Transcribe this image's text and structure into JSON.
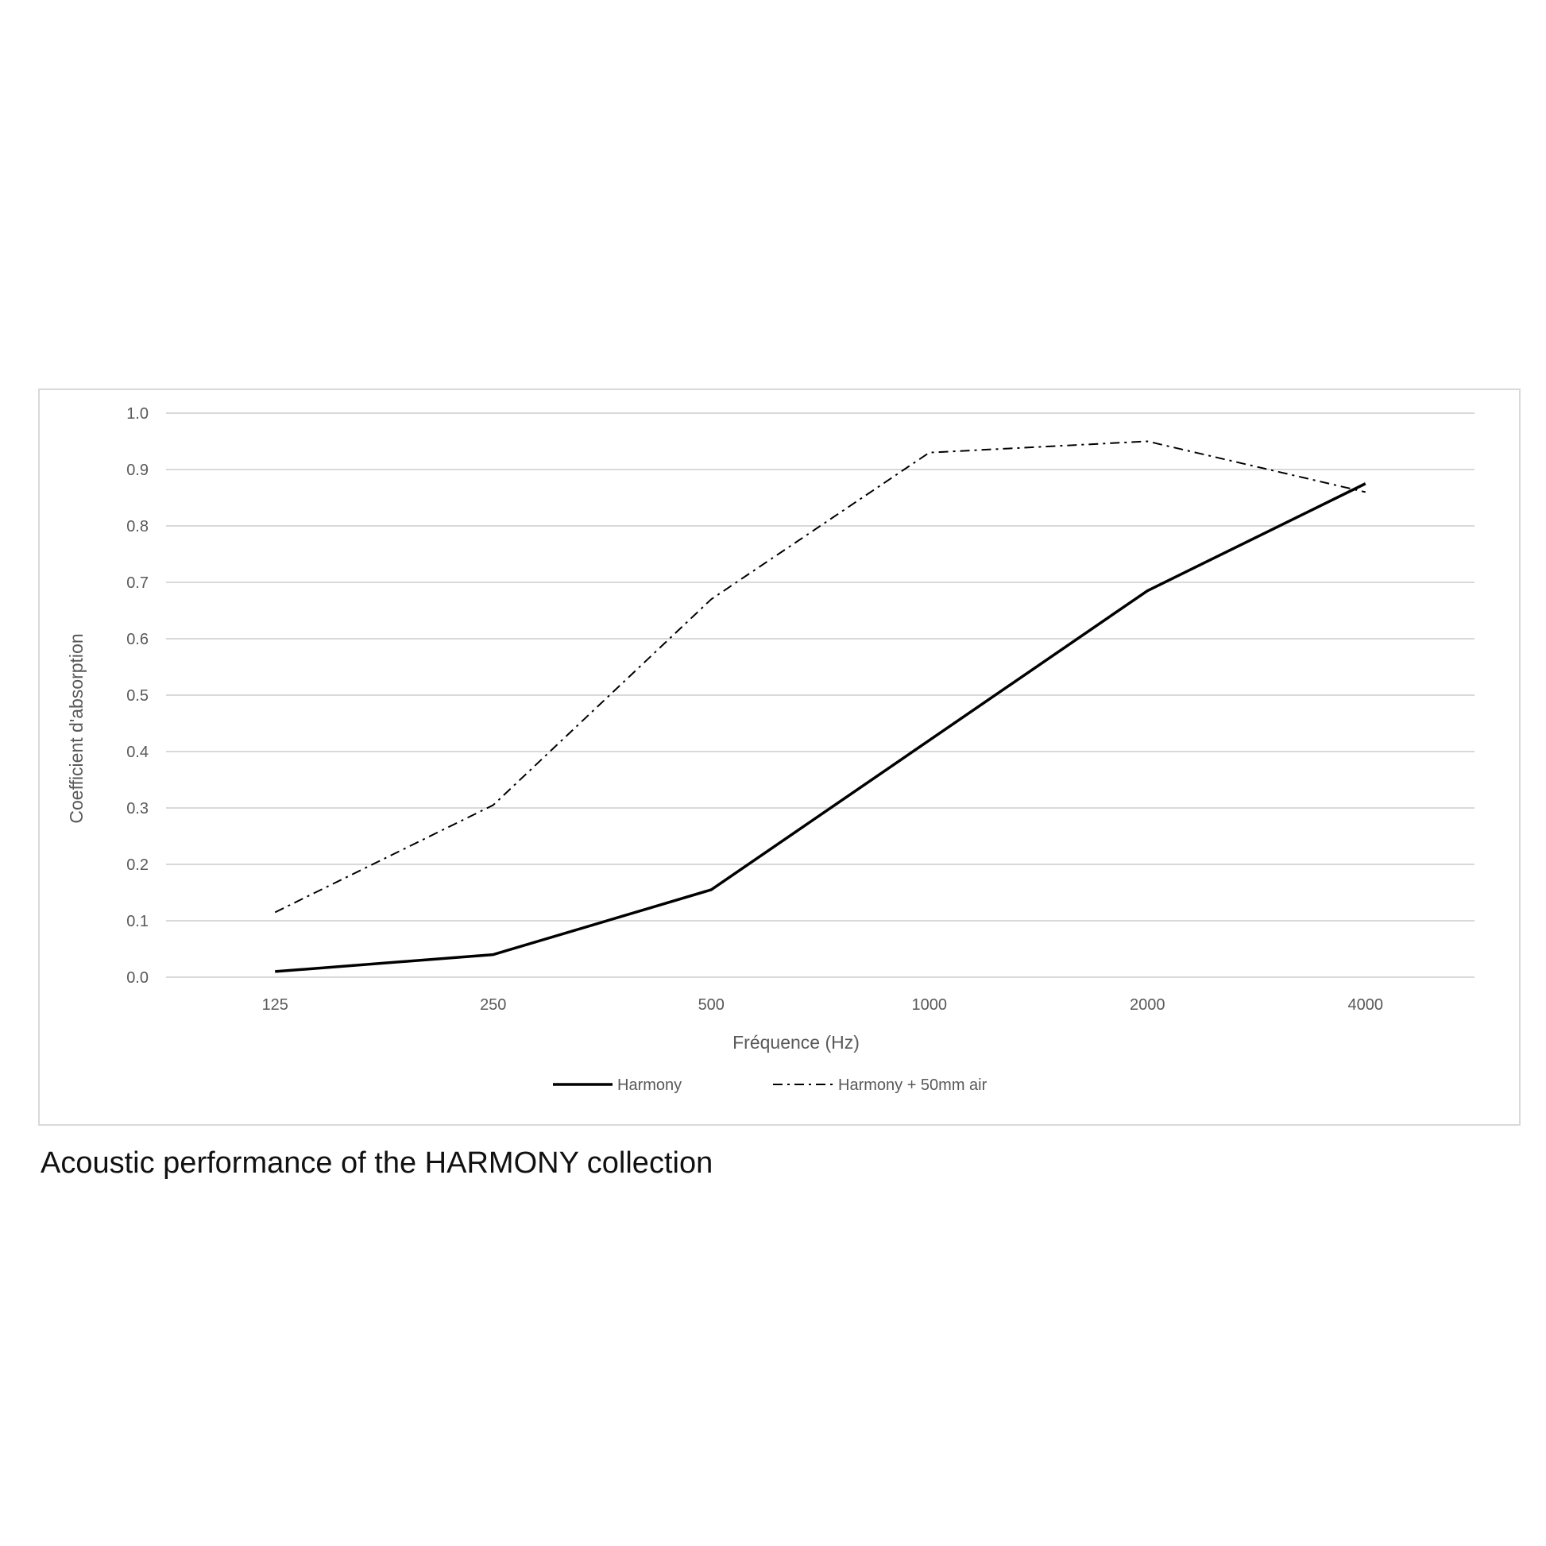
{
  "caption": "Acoustic performance of the HARMONY collection",
  "chart_data": {
    "type": "line",
    "title": "",
    "xlabel": "Fréquence (Hz)",
    "ylabel": "Coefficient d'absorption",
    "categories": [
      "125",
      "250",
      "500",
      "1000",
      "2000",
      "4000"
    ],
    "ylim": [
      0,
      1.0
    ],
    "yticks": [
      "0.0",
      "0.1",
      "0.2",
      "0.3",
      "0.4",
      "0.5",
      "0.6",
      "0.7",
      "0.8",
      "0.9",
      "1.0"
    ],
    "grid": true,
    "legend_placement": "bottom",
    "series": [
      {
        "name": "Harmony",
        "values": [
          0.01,
          0.04,
          0.155,
          0.42,
          0.685,
          0.875
        ],
        "color": "#000000",
        "style": "solid"
      },
      {
        "name": "Harmony + 50mm air",
        "values": [
          0.115,
          0.305,
          0.67,
          0.93,
          0.95,
          0.86
        ],
        "color": "#000000",
        "style": "dash-dot"
      }
    ]
  }
}
